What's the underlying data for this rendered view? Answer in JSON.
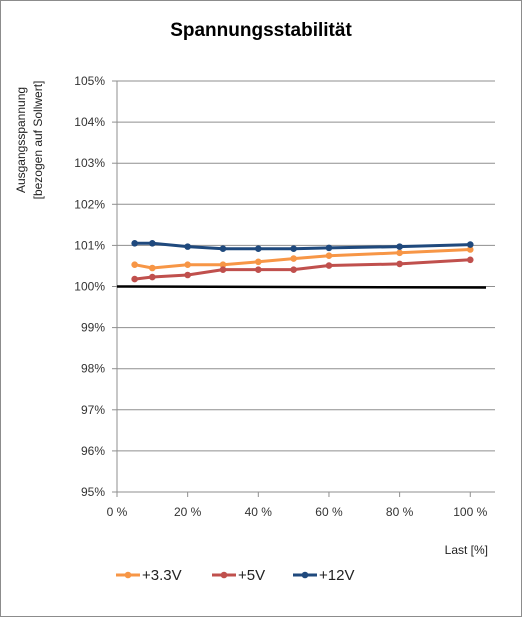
{
  "chart_data": {
    "type": "line",
    "title": "Spannungsstabilität",
    "ylabel_line1": "Ausgangsspannung",
    "ylabel_line2": "[bezogen auf Sollwert]",
    "xlabel": "Last [%]",
    "xlim": [
      0,
      107
    ],
    "ylim": [
      95,
      105
    ],
    "x_ticks": [
      0,
      20,
      40,
      60,
      80,
      100
    ],
    "x_tick_labels": [
      "0 %",
      "20 %",
      "40 %",
      "60 %",
      "80 %",
      "100 %"
    ],
    "y_ticks": [
      95,
      96,
      97,
      98,
      99,
      100,
      101,
      102,
      103,
      104,
      105
    ],
    "y_tick_labels": [
      "95%",
      "96%",
      "97%",
      "98%",
      "99%",
      "100%",
      "101%",
      "102%",
      "103%",
      "104%",
      "105%"
    ],
    "grid": "horizontal",
    "legend_position": "bottom",
    "reference_line": {
      "value": 100,
      "color": "#000000"
    },
    "series": [
      {
        "name": "+3.3V",
        "color": "#f79646",
        "x": [
          5,
          10,
          20,
          30,
          40,
          50,
          60,
          80,
          100
        ],
        "y": [
          100.53,
          100.45,
          100.53,
          100.53,
          100.6,
          100.68,
          100.75,
          100.82,
          100.9
        ]
      },
      {
        "name": "+5V",
        "color": "#c0504d",
        "x": [
          5,
          10,
          20,
          30,
          40,
          50,
          60,
          80,
          100
        ],
        "y": [
          100.18,
          100.23,
          100.28,
          100.41,
          100.41,
          100.41,
          100.51,
          100.55,
          100.65
        ]
      },
      {
        "name": "+12V",
        "color": "#1f497d",
        "x": [
          5,
          10,
          20,
          30,
          40,
          50,
          60,
          80,
          100
        ],
        "y": [
          101.05,
          101.05,
          100.97,
          100.92,
          100.92,
          100.92,
          100.94,
          100.97,
          101.02
        ]
      }
    ]
  }
}
